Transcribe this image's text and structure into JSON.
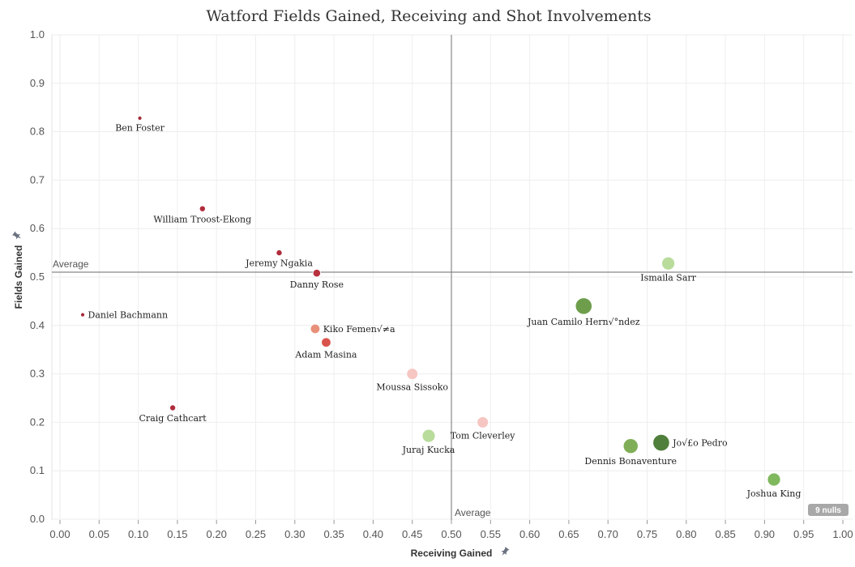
{
  "chart_data": {
    "type": "scatter",
    "title": "Watford Fields Gained, Receiving and Shot Involvements",
    "xlabel": "Receiving Gained",
    "ylabel": "Fields Gained",
    "xlim": [
      0,
      1
    ],
    "ylim": [
      0,
      1
    ],
    "xticks": [
      "0.00",
      "0.05",
      "0.10",
      "0.15",
      "0.20",
      "0.25",
      "0.30",
      "0.35",
      "0.40",
      "0.45",
      "0.50",
      "0.55",
      "0.60",
      "0.65",
      "0.70",
      "0.75",
      "0.80",
      "0.85",
      "0.90",
      "0.95",
      "1.00"
    ],
    "yticks": [
      "0.0",
      "0.1",
      "0.2",
      "0.3",
      "0.4",
      "0.5",
      "0.6",
      "0.7",
      "0.8",
      "0.9",
      "1.0"
    ],
    "grid": true,
    "reference_lines": [
      {
        "axis": "y",
        "value": 0.51,
        "label": "Average"
      },
      {
        "axis": "x",
        "value": 0.5,
        "label": "Average"
      }
    ],
    "nulls_badge": "9 nulls",
    "points": [
      {
        "name": "Ben Foster",
        "x": 0.102,
        "y": 0.828,
        "size": 1,
        "color": "#a52a3a",
        "label_pos": "below"
      },
      {
        "name": "William Troost-Ekong",
        "x": 0.182,
        "y": 0.641,
        "size": 2,
        "color": "#b02c3c",
        "label_pos": "below"
      },
      {
        "name": "Jeremy Ngakia",
        "x": 0.28,
        "y": 0.55,
        "size": 2,
        "color": "#b02c3c",
        "label_pos": "below"
      },
      {
        "name": "Danny Rose",
        "x": 0.328,
        "y": 0.508,
        "size": 3,
        "color": "#b7313f",
        "label_pos": "below"
      },
      {
        "name": "Daniel Bachmann",
        "x": 0.029,
        "y": 0.422,
        "size": 1,
        "color": "#a52a3a",
        "label_pos": "right"
      },
      {
        "name": "Kiko Femen√≠a",
        "x": 0.326,
        "y": 0.393,
        "size": 4,
        "color": "#e8907a",
        "label_pos": "right"
      },
      {
        "name": "Adam Masina",
        "x": 0.34,
        "y": 0.365,
        "size": 4,
        "color": "#d9534c",
        "label_pos": "below"
      },
      {
        "name": "Moussa Sissoko",
        "x": 0.45,
        "y": 0.3,
        "size": 5,
        "color": "#f6c6c2",
        "label_pos": "below"
      },
      {
        "name": "Craig Cathcart",
        "x": 0.144,
        "y": 0.23,
        "size": 2,
        "color": "#b02c3c",
        "label_pos": "below"
      },
      {
        "name": "Tom Cleverley",
        "x": 0.54,
        "y": 0.2,
        "size": 5,
        "color": "#f6c6c2",
        "label_pos": "below"
      },
      {
        "name": "Juraj Kucka",
        "x": 0.471,
        "y": 0.172,
        "size": 6,
        "color": "#b9dc9c",
        "label_pos": "below"
      },
      {
        "name": "Ismaila Sarr",
        "x": 0.777,
        "y": 0.528,
        "size": 6,
        "color": "#b9dc9c",
        "label_pos": "below"
      },
      {
        "name": "Juan Camilo Hern√°ndez",
        "x": 0.669,
        "y": 0.44,
        "size": 8,
        "color": "#6e9e4c",
        "label_pos": "below"
      },
      {
        "name": "Jo√£o Pedro",
        "x": 0.768,
        "y": 0.158,
        "size": 8,
        "color": "#4f7f3a",
        "label_pos": "right"
      },
      {
        "name": "Dennis Bonaventure",
        "x": 0.729,
        "y": 0.151,
        "size": 7,
        "color": "#80ae58",
        "label_pos": "below"
      },
      {
        "name": "Joshua King",
        "x": 0.912,
        "y": 0.082,
        "size": 6,
        "color": "#80b85e",
        "label_pos": "below"
      }
    ]
  }
}
